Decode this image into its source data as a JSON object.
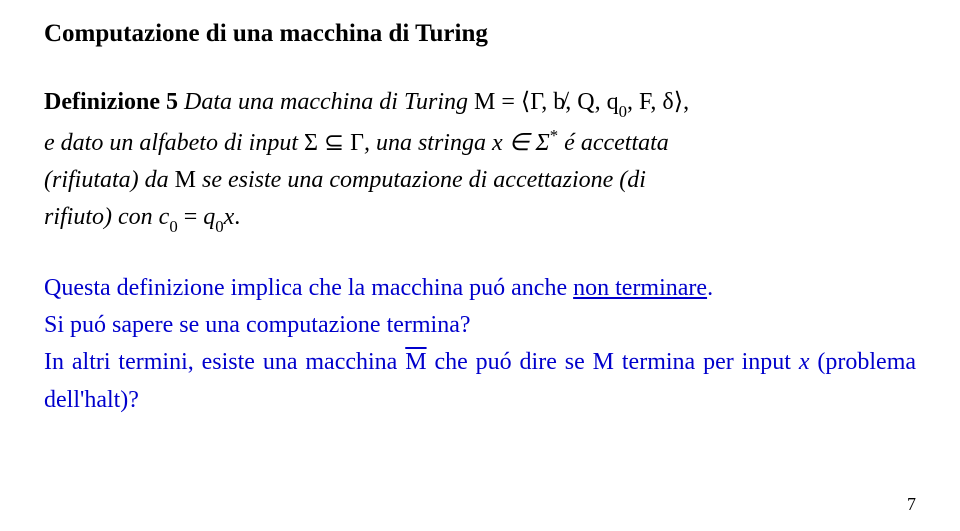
{
  "title": "Computazione di una macchina di Turing",
  "definition": {
    "label": "Definizione 5",
    "text_before_tuple": "Data una macchina di Turing ",
    "M": "M",
    "equals": " = ",
    "tuple_open": "⟨",
    "tuple_parts": "Γ, b̸, Q, q",
    "tuple_sub": "0",
    "tuple_rest": ", F, δ",
    "tuple_close": "⟩",
    "line2_a": "e dato un alfabeto di input ",
    "sigma": "Σ ⊆ Γ",
    "line2_b": ", una stringa ",
    "x_in": "x ∈ Σ",
    "star": "*",
    "line2_c": " é accettata",
    "line3_a": "(rifiutata) da ",
    "line3_b": " se esiste una computazione di accettazione (di",
    "line4_a": "rifiuto) con ",
    "c0": "c",
    "c0_sub": "0",
    "eq": " = ",
    "q0": "q",
    "q0_sub": "0",
    "x": "x",
    "period": "."
  },
  "blue": {
    "p1_a": "Questa definizione implica che la macchina puó anche ",
    "p1_u": "non terminare",
    "p1_b": ".",
    "p2": "Si puó sapere se una computazione termina?",
    "p3_a": "In altri termini, esiste una macchina ",
    "p3_M": "M",
    "p3_b": " che puó dire se ",
    "p3_M2": "M",
    "p3_c": " termina per input ",
    "p3_x": "x",
    "p3_d": " (problema dell'halt)?"
  },
  "page_number": "7",
  "colors": {
    "text": "#000000",
    "blue": "#0000cc",
    "background": "#ffffff"
  },
  "fonts": {
    "title_size": 25,
    "body_size": 24,
    "pagenum_size": 18
  }
}
